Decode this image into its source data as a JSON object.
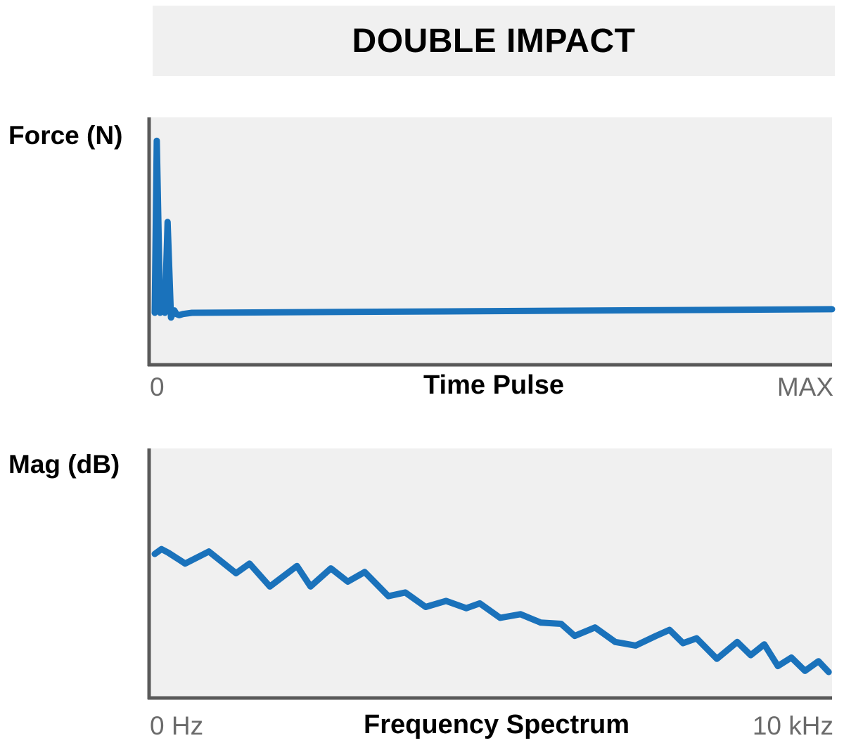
{
  "title": "DOUBLE IMPACT",
  "colors": {
    "line": "#1a72bb",
    "panel": "#f0f0f0",
    "axis": "#595959",
    "tick_text": "#6b6b6b"
  },
  "chart_data": [
    {
      "type": "line",
      "ylabel": "Force (N)",
      "xlabel": "Time Pulse",
      "x_ticks": [
        "0",
        "MAX"
      ],
      "grid": false,
      "xlim": [
        0,
        100
      ],
      "ylim": [
        0,
        100
      ],
      "series": [
        {
          "x": [
            0,
            0.3,
            0.8,
            1.2,
            1.5,
            1.9,
            2.4,
            2.9,
            3.2,
            3.6,
            4.2,
            5.5,
            100
          ],
          "y": [
            20,
            92,
            20,
            25,
            20,
            58,
            18,
            21,
            19.5,
            19,
            19.5,
            20,
            21.5
          ]
        }
      ]
    },
    {
      "type": "line",
      "ylabel": "Mag (dB)",
      "xlabel": "Frequency Spectrum",
      "x_ticks": [
        "0 Hz",
        "10 kHz"
      ],
      "grid": false,
      "xlim": [
        0,
        100
      ],
      "ylim": [
        0,
        100
      ],
      "series": [
        {
          "x": [
            0,
            1,
            2,
            4.5,
            8,
            12,
            14,
            17,
            21,
            23,
            26,
            28.5,
            31,
            34.5,
            37,
            40,
            43,
            46,
            48,
            51,
            54,
            57,
            60,
            62,
            65,
            68,
            71,
            74,
            76,
            78,
            80,
            83,
            86,
            88,
            90,
            92,
            94,
            96,
            98,
            99.5
          ],
          "y": [
            58,
            60,
            58.5,
            54,
            59,
            50,
            54,
            44.5,
            53,
            44.5,
            52,
            46.5,
            50.5,
            40.5,
            42,
            36,
            38.5,
            35.5,
            37.5,
            31.5,
            33,
            29.5,
            29,
            24,
            27.5,
            21.5,
            20,
            24,
            26.5,
            21,
            23,
            14.5,
            21.5,
            16,
            20.5,
            11.5,
            15,
            9.5,
            13.5,
            9
          ]
        }
      ]
    }
  ]
}
